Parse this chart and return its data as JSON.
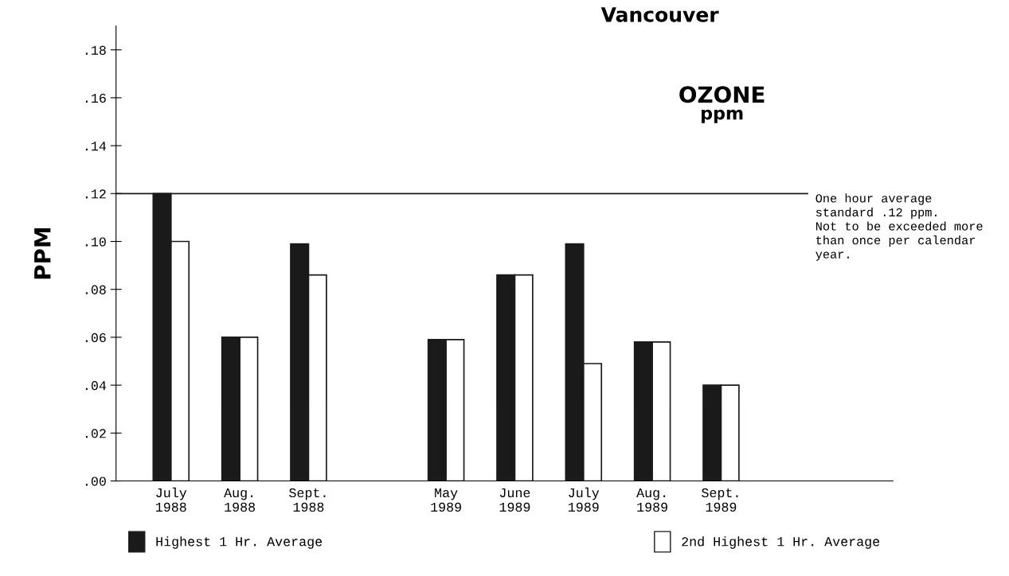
{
  "chart_data": {
    "type": "bar",
    "title": "Vancouver",
    "ylabel": "PPM",
    "annotations": [
      "OZONE",
      "ppm"
    ],
    "categories": [
      "July\n1988",
      "Aug.\n1988",
      "Sept.\n1988",
      null,
      "May\n1989",
      "June\n1989",
      "July\n1989",
      "Aug.\n1989",
      "Sept.\n1989",
      null,
      null
    ],
    "series": [
      {
        "name": "Highest 1 Hr. Average",
        "color": "#1a1a1a",
        "values": [
          0.12,
          0.06,
          0.099,
          null,
          0.059,
          0.086,
          0.099,
          0.058,
          0.04,
          null,
          null
        ]
      },
      {
        "name": "2nd Highest 1 Hr. Average",
        "color": "#ffffff",
        "values": [
          0.1,
          0.06,
          0.086,
          null,
          0.059,
          0.086,
          0.049,
          0.058,
          0.04,
          null,
          null
        ]
      }
    ],
    "ylim": [
      0,
      0.19
    ],
    "yticks": [
      {
        "value": 0,
        "label": ".00"
      },
      {
        "value": 0.02,
        "label": ".02"
      },
      {
        "value": 0.04,
        "label": ".04"
      },
      {
        "value": 0.06,
        "label": ".06"
      },
      {
        "value": 0.08,
        "label": ".08"
      },
      {
        "value": 0.1,
        "label": ".10"
      },
      {
        "value": 0.12,
        "label": ".12"
      },
      {
        "value": 0.14,
        "label": ".14"
      },
      {
        "value": 0.16,
        "label": ".16"
      },
      {
        "value": 0.18,
        "label": ".18"
      }
    ],
    "ref_lines": [
      {
        "axis": "y",
        "value": 0.12,
        "label": "One hour average\nstandard .12 ppm.\nNot to be exceeded more\nthan once per calendar\nyear.",
        "color": "#1a1a1a"
      }
    ],
    "grid": false,
    "legend": "bottom"
  }
}
